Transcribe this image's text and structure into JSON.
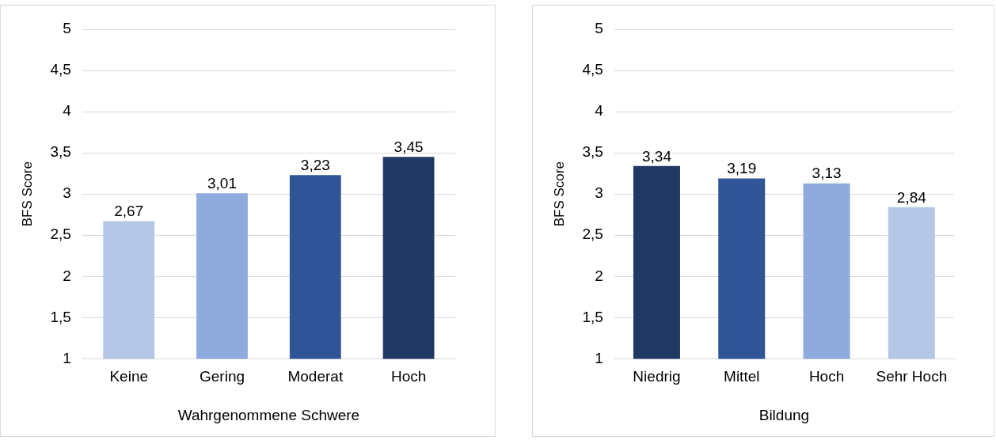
{
  "chart_data": [
    {
      "type": "bar",
      "xlabel": "Wahrgenommene Schwere",
      "ylabel": "BFS Score",
      "categories": [
        "Keine",
        "Gering",
        "Moderat",
        "Hoch"
      ],
      "values": [
        2.67,
        3.01,
        3.23,
        3.45
      ],
      "colors": [
        "#b4c7e7",
        "#8faadc",
        "#2f5597",
        "#203864"
      ],
      "value_labels": [
        "2,67",
        "3,01",
        "3,23",
        "3,45"
      ],
      "ylim": [
        1,
        5
      ],
      "yticks": [
        1,
        {
          "value": 1.5,
          "label": "1,5"
        },
        2,
        {
          "value": 2.5,
          "label": "2,5"
        },
        3,
        {
          "value": 3.5,
          "label": "3,5"
        },
        4,
        {
          "value": 4.5,
          "label": "4,5"
        },
        5
      ],
      "grid": "y",
      "legend": false
    },
    {
      "type": "bar",
      "xlabel": "Bildung",
      "ylabel": "BFS Score",
      "categories": [
        "Niedrig",
        "Mittel",
        "Hoch",
        "Sehr Hoch"
      ],
      "values": [
        3.34,
        3.19,
        3.13,
        2.84
      ],
      "colors": [
        "#203864",
        "#2f5597",
        "#8faadc",
        "#b4c7e7"
      ],
      "value_labels": [
        "3,34",
        "3,19",
        "3,13",
        "2,84"
      ],
      "ylim": [
        1,
        5
      ],
      "yticks": [
        1,
        {
          "value": 1.5,
          "label": "1,5"
        },
        2,
        {
          "value": 2.5,
          "label": "2,5"
        },
        3,
        {
          "value": 3.5,
          "label": "3,5"
        },
        4,
        {
          "value": 4.5,
          "label": "4,5"
        },
        5
      ],
      "grid": "y",
      "legend": false
    }
  ]
}
